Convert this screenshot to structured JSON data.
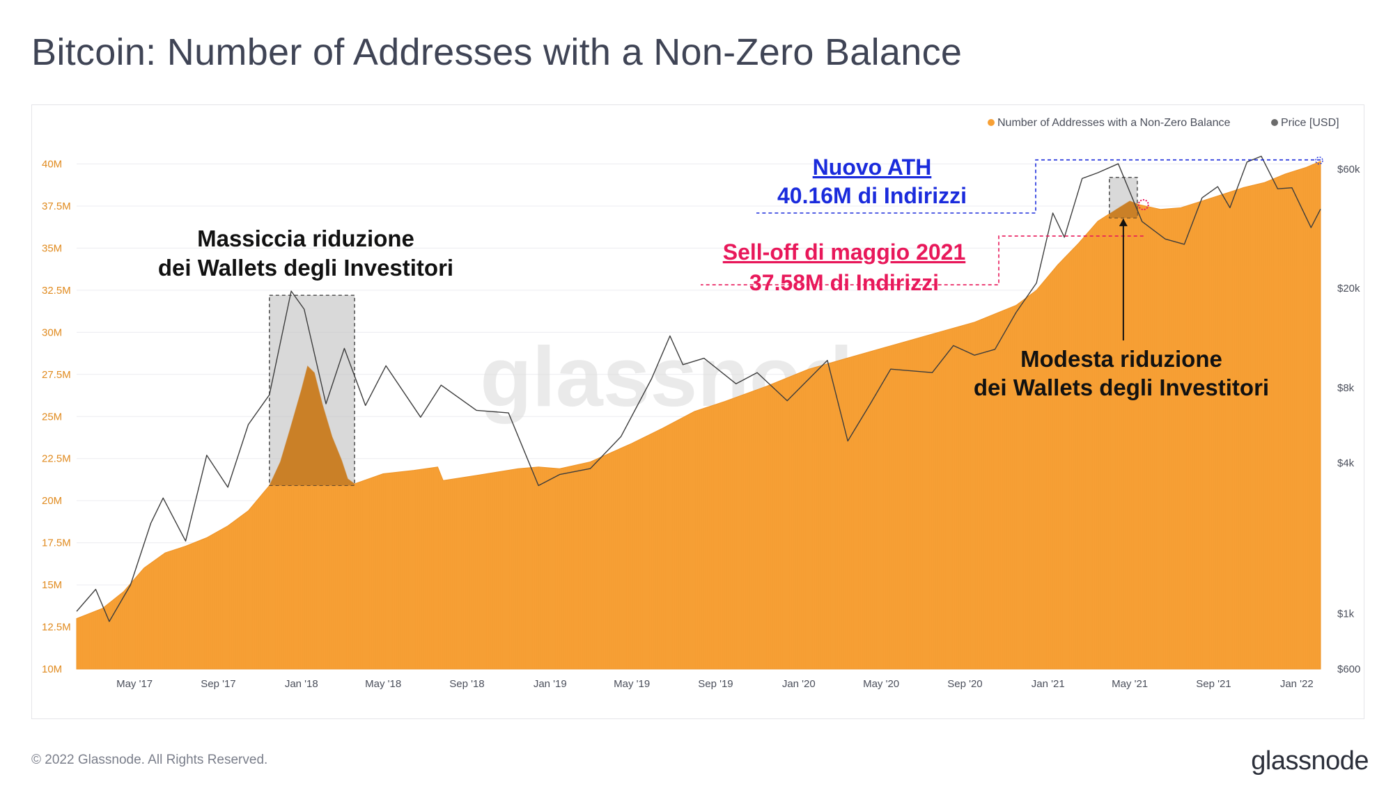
{
  "title": "Bitcoin: Number of Addresses with a Non-Zero Balance",
  "footer": {
    "copyright": "© 2022 Glassnode. All Rights Reserved.",
    "logo": "glassnode"
  },
  "watermark": "glassnode",
  "colors": {
    "addresses": "#f7a035",
    "addresses_highlight": "#c97a1d",
    "price": "#555555",
    "ath": "#1a2bdc",
    "selloff": "#e8185a",
    "text": "#3f4455"
  },
  "chart_data": {
    "type": "area",
    "legend": [
      {
        "label": "Number of Addresses with a Non-Zero Balance",
        "color": "#f7a035"
      },
      {
        "label": "Price [USD]",
        "color": "#6b6b6b"
      }
    ],
    "legend_position": "top-right",
    "x_tick_labels": [
      "May '17",
      "Sep '17",
      "Jan '18",
      "May '18",
      "Sep '18",
      "Jan '19",
      "May '19",
      "Sep '19",
      "Jan '20",
      "May '20",
      "Sep '20",
      "Jan '21",
      "May '21",
      "Sep '21",
      "Jan '22"
    ],
    "x_range": [
      "2017-02-05",
      "2022-02-05"
    ],
    "y_left": {
      "label": "",
      "ticks": [
        10,
        12.5,
        15,
        17.5,
        20,
        22.5,
        25,
        27.5,
        30,
        32.5,
        35,
        37.5,
        40
      ],
      "tick_labels": [
        "10M",
        "12.5M",
        "15M",
        "17.5M",
        "20M",
        "22.5M",
        "25M",
        "27.5M",
        "30M",
        "32.5M",
        "35M",
        "37.5M",
        "40M"
      ],
      "range": [
        10,
        40.6
      ],
      "unit": "millions of addresses"
    },
    "y_right": {
      "label": "",
      "scale": "log",
      "ticks": [
        600,
        1000,
        4000,
        8000,
        20000,
        60000
      ],
      "tick_labels": [
        "$600",
        "$1k",
        "$4k",
        "$8k",
        "$20k",
        "$60k"
      ],
      "range": [
        600,
        69000
      ]
    },
    "grid": true,
    "series": [
      {
        "name": "Number of Addresses with a Non-Zero Balance",
        "axis": "left",
        "points": [
          [
            "2017-02-05",
            13.0
          ],
          [
            "2017-03-15",
            13.6
          ],
          [
            "2017-04-15",
            14.6
          ],
          [
            "2017-05-15",
            16.0
          ],
          [
            "2017-06-15",
            16.9
          ],
          [
            "2017-07-15",
            17.3
          ],
          [
            "2017-08-15",
            17.8
          ],
          [
            "2017-09-15",
            18.5
          ],
          [
            "2017-10-15",
            19.4
          ],
          [
            "2017-11-15",
            20.9
          ],
          [
            "2017-12-01",
            22.3
          ],
          [
            "2017-12-15",
            24.2
          ],
          [
            "2018-01-01",
            26.6
          ],
          [
            "2018-01-10",
            28.0
          ],
          [
            "2018-01-20",
            27.6
          ],
          [
            "2018-02-01",
            25.7
          ],
          [
            "2018-02-15",
            23.8
          ],
          [
            "2018-03-01",
            22.4
          ],
          [
            "2018-03-10",
            21.3
          ],
          [
            "2018-03-20",
            21.0
          ],
          [
            "2018-05-01",
            21.6
          ],
          [
            "2018-06-15",
            21.8
          ],
          [
            "2018-07-20",
            22.0
          ],
          [
            "2018-07-28",
            21.2
          ],
          [
            "2018-09-15",
            21.5
          ],
          [
            "2018-11-15",
            21.9
          ],
          [
            "2018-12-15",
            22.0
          ],
          [
            "2019-01-15",
            21.9
          ],
          [
            "2019-03-01",
            22.3
          ],
          [
            "2019-05-01",
            23.4
          ],
          [
            "2019-06-15",
            24.3
          ],
          [
            "2019-08-01",
            25.3
          ],
          [
            "2019-09-15",
            25.9
          ],
          [
            "2019-11-15",
            26.8
          ],
          [
            "2020-01-15",
            27.8
          ],
          [
            "2020-03-15",
            28.5
          ],
          [
            "2020-05-15",
            29.2
          ],
          [
            "2020-07-15",
            29.9
          ],
          [
            "2020-09-15",
            30.6
          ],
          [
            "2020-11-15",
            31.6
          ],
          [
            "2020-12-15",
            32.5
          ],
          [
            "2021-01-15",
            34.0
          ],
          [
            "2021-02-15",
            35.3
          ],
          [
            "2021-03-15",
            36.6
          ],
          [
            "2021-04-15",
            37.4
          ],
          [
            "2021-05-01",
            37.8
          ],
          [
            "2021-05-15",
            37.58
          ],
          [
            "2021-06-15",
            37.3
          ],
          [
            "2021-07-15",
            37.4
          ],
          [
            "2021-08-15",
            37.8
          ],
          [
            "2021-09-15",
            38.2
          ],
          [
            "2021-10-15",
            38.6
          ],
          [
            "2021-11-15",
            38.9
          ],
          [
            "2021-12-15",
            39.4
          ],
          [
            "2022-01-15",
            39.8
          ],
          [
            "2022-02-05",
            40.16
          ]
        ]
      },
      {
        "name": "Price [USD]",
        "axis": "right",
        "points": [
          [
            "2017-02-05",
            1020
          ],
          [
            "2017-03-05",
            1250
          ],
          [
            "2017-03-25",
            930
          ],
          [
            "2017-04-25",
            1300
          ],
          [
            "2017-05-25",
            2300
          ],
          [
            "2017-06-12",
            2900
          ],
          [
            "2017-07-15",
            1950
          ],
          [
            "2017-08-15",
            4300
          ],
          [
            "2017-09-15",
            3200
          ],
          [
            "2017-10-15",
            5700
          ],
          [
            "2017-11-15",
            7500
          ],
          [
            "2017-12-17",
            19500
          ],
          [
            "2018-01-05",
            16500
          ],
          [
            "2018-02-06",
            6900
          ],
          [
            "2018-03-05",
            11500
          ],
          [
            "2018-04-05",
            6800
          ],
          [
            "2018-05-05",
            9800
          ],
          [
            "2018-06-25",
            6100
          ],
          [
            "2018-07-25",
            8200
          ],
          [
            "2018-09-15",
            6500
          ],
          [
            "2018-11-01",
            6350
          ],
          [
            "2018-12-15",
            3250
          ],
          [
            "2019-01-15",
            3600
          ],
          [
            "2019-03-01",
            3800
          ],
          [
            "2019-04-15",
            5100
          ],
          [
            "2019-05-30",
            8700
          ],
          [
            "2019-06-26",
            12900
          ],
          [
            "2019-07-15",
            9900
          ],
          [
            "2019-08-15",
            10500
          ],
          [
            "2019-10-01",
            8300
          ],
          [
            "2019-11-01",
            9200
          ],
          [
            "2019-12-15",
            7100
          ],
          [
            "2020-02-12",
            10300
          ],
          [
            "2020-03-13",
            4900
          ],
          [
            "2020-04-15",
            6900
          ],
          [
            "2020-05-15",
            9500
          ],
          [
            "2020-07-15",
            9200
          ],
          [
            "2020-08-15",
            11800
          ],
          [
            "2020-09-15",
            10800
          ],
          [
            "2020-10-15",
            11400
          ],
          [
            "2020-11-15",
            16000
          ],
          [
            "2020-12-15",
            21000
          ],
          [
            "2021-01-08",
            40000
          ],
          [
            "2021-01-25",
            32000
          ],
          [
            "2021-02-20",
            55000
          ],
          [
            "2021-03-15",
            58000
          ],
          [
            "2021-04-14",
            63000
          ],
          [
            "2021-05-19",
            37000
          ],
          [
            "2021-06-22",
            31500
          ],
          [
            "2021-07-20",
            30000
          ],
          [
            "2021-08-15",
            46000
          ],
          [
            "2021-09-07",
            51000
          ],
          [
            "2021-09-25",
            42000
          ],
          [
            "2021-10-20",
            64000
          ],
          [
            "2021-11-10",
            67500
          ],
          [
            "2021-12-04",
            50000
          ],
          [
            "2021-12-25",
            50500
          ],
          [
            "2022-01-22",
            35000
          ],
          [
            "2022-02-05",
            41500
          ]
        ]
      }
    ],
    "annotations": [
      {
        "id": "massive-reduction",
        "text": [
          "Massiccia riduzione",
          "dei Wallets degli Investitori"
        ],
        "color": "#111111",
        "box_x": [
          "2017-11-15",
          "2018-03-20"
        ],
        "box_y": [
          20.9,
          32.2
        ]
      },
      {
        "id": "new-ath",
        "text": [
          "Nuovo ATH",
          "40.16M di Indirizzi"
        ],
        "color": "#1a2bdc",
        "value": 40.16,
        "date": "2022-02-05"
      },
      {
        "id": "selloff",
        "text": [
          "Sell-off di maggio 2021",
          "37.58M di Indirizzi"
        ],
        "color": "#e8185a",
        "value": 37.58,
        "date": "2021-05-21"
      },
      {
        "id": "modest-reduction",
        "text": [
          "Modesta riduzione",
          "dei Wallets degli Investitori"
        ],
        "color": "#111111",
        "box_x": [
          "2021-04-01",
          "2021-05-12"
        ],
        "box_y": [
          36.8,
          39.2
        ]
      }
    ]
  }
}
